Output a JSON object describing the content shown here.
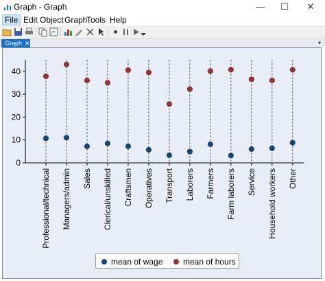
{
  "window": {
    "title": "Graph - Graph",
    "minimize": "—",
    "maximize": "☐",
    "close": "✕"
  },
  "menu": {
    "items": [
      "File",
      "Edit",
      "Object",
      "Graph",
      "Tools",
      "Help"
    ]
  },
  "toolbar": {
    "icons": [
      "open-icon",
      "save-icon",
      "print-icon",
      "copy-icon",
      "copy-graph-icon",
      "graph-editor-icon",
      "rename-icon",
      "recorder-icon",
      "pointer-icon",
      "add-text-icon",
      "add-line-icon",
      "add-marker-icon",
      "grid-edit-icon",
      "pause-icon",
      "play-icon",
      "dropdown-icon"
    ]
  },
  "tab": {
    "label": "Graph",
    "close": "✕",
    "dropdown": "▾"
  },
  "colors": {
    "wage": "#1a476f",
    "hours": "#90353b",
    "plot_bg": "#e9edf5",
    "tab": "#1c6fc2"
  },
  "chart_data": {
    "type": "scatter",
    "categories": [
      "Professional/technical",
      "Managers/admin",
      "Sales",
      "Clerical/unskilled",
      "Craftsmen",
      "Operatives",
      "Transport",
      "Laborers",
      "Farmers",
      "Farm laborers",
      "Service",
      "Household workers",
      "Other"
    ],
    "series": [
      {
        "name": "mean of wage",
        "values": [
          10.7,
          11.0,
          7.2,
          8.5,
          7.2,
          5.7,
          3.3,
          4.9,
          8.1,
          3.2,
          6.0,
          6.4,
          8.8
        ]
      },
      {
        "name": "mean of hours",
        "values": [
          37.8,
          43.0,
          36.0,
          35.0,
          40.5,
          39.5,
          25.7,
          32.2,
          40.1,
          40.7,
          36.5,
          36.0,
          40.7
        ]
      }
    ],
    "yticks": [
      "0",
      "10",
      "20",
      "30",
      "40"
    ],
    "ylim": [
      0,
      45
    ],
    "grid": false,
    "legend_position": "bottom",
    "drop_lines": true
  }
}
